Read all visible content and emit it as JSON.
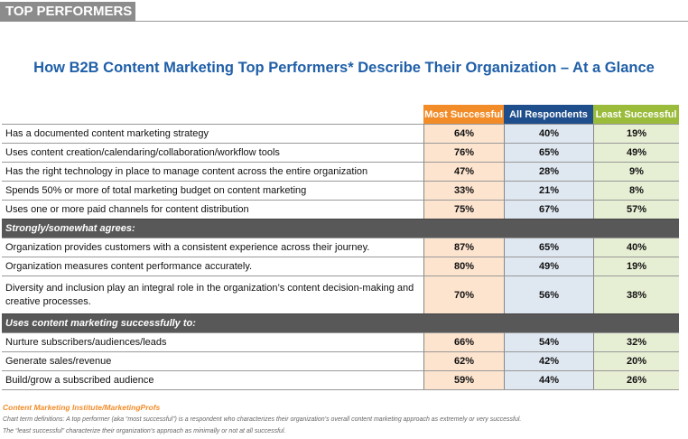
{
  "banner": "TOP PERFORMERS",
  "title": "How B2B Content Marketing Top Performers* Describe Their Organization – At a Glance",
  "table": {
    "columns": [
      "Most Successful",
      "All Respondents",
      "Least Successful"
    ],
    "rows": [
      {
        "label": "Has a documented content marketing strategy",
        "values": [
          "64%",
          "40%",
          "19%"
        ]
      },
      {
        "label": "Uses content creation/calendaring/collaboration/workflow tools",
        "values": [
          "76%",
          "65%",
          "49%"
        ]
      },
      {
        "label": "Has the right technology in place to manage content across the entire organization",
        "values": [
          "47%",
          "28%",
          "9%"
        ]
      },
      {
        "label": "Spends 50% or more of total marketing budget on content marketing",
        "values": [
          "33%",
          "21%",
          "8%"
        ]
      },
      {
        "label": "Uses one or more paid channels for content distribution",
        "values": [
          "75%",
          "67%",
          "57%"
        ]
      },
      {
        "section": "Strongly/somewhat agrees:"
      },
      {
        "label": "Organization provides customers with a consistent experience across their journey.",
        "values": [
          "87%",
          "65%",
          "40%"
        ]
      },
      {
        "label": "Organization measures content performance accurately.",
        "values": [
          "80%",
          "49%",
          "19%"
        ]
      },
      {
        "label": "Diversity and inclusion play an integral role in the organization’s content decision-making and creative processes.",
        "values": [
          "70%",
          "56%",
          "38%"
        ]
      },
      {
        "section": "Uses content marketing successfully to:"
      },
      {
        "label": "Nurture subscribers/audiences/leads",
        "values": [
          "66%",
          "54%",
          "32%"
        ]
      },
      {
        "label": "Generate sales/revenue",
        "values": [
          "62%",
          "42%",
          "20%"
        ]
      },
      {
        "label": "Build/grow a subscribed audience",
        "values": [
          "59%",
          "44%",
          "26%"
        ]
      }
    ]
  },
  "footer": {
    "source": "Content Marketing Institute/MarketingProfs",
    "notes": [
      "Chart term definitions: A top performer (aka “most successful”) is a respondent who characterizes their organization’s overall content marketing approach as extremely or very successful.",
      "The “least successful” characterize their organization’s approach as minimally or not at all successful."
    ]
  }
}
